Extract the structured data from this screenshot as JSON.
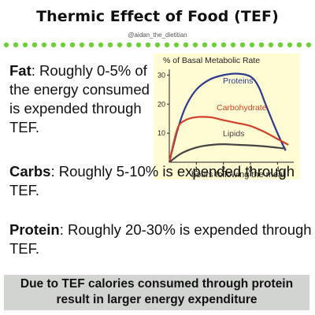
{
  "title": "Thermic Effect of Food (TEF)",
  "handle": "@aidan_the_dietitian",
  "colors": {
    "dots": "#6fcf3b",
    "banner_bg": "#d2d4d2",
    "chart_bg": "#fffbd2"
  },
  "paragraphs": {
    "fat": {
      "label": "Fat",
      "text": ": Roughly 0-5% of the energy consumed is expended through TEF."
    },
    "carbs": {
      "label": "Carbs",
      "text": ": Roughly 5-10% is expended through TEF."
    },
    "protein": {
      "label": "Protein",
      "text": ": Roughly 20-30% is expended through TEF."
    }
  },
  "banner": {
    "line1": "Due to TEF calories consumed through protein",
    "line2": "result in larger energy expenditure"
  },
  "chart_data": {
    "type": "line",
    "title": "% of Basal Metabolic Rate",
    "xlabel": "hours following the meal",
    "ylabel": "",
    "xlim": [
      0,
      4.6
    ],
    "ylim": [
      0,
      32
    ],
    "x_ticks": [
      1,
      2,
      3,
      4
    ],
    "y_ticks": [
      10,
      20,
      30
    ],
    "grid": false,
    "series": [
      {
        "name": "Proteins",
        "color": "#2a3a8c",
        "x": [
          0,
          0.3,
          0.6,
          1.0,
          1.5,
          2.0,
          2.5,
          3.0,
          3.3,
          3.6,
          4.0,
          4.3
        ],
        "y": [
          0,
          11,
          19,
          25,
          28.5,
          30,
          30.5,
          29.5,
          26,
          19,
          10,
          4
        ]
      },
      {
        "name": "Carbohydrate",
        "color": "#d2402a",
        "x": [
          0,
          0.3,
          0.6,
          1.0,
          1.5,
          2.0,
          2.5,
          3.0,
          3.5,
          4.0,
          4.4
        ],
        "y": [
          0,
          11.5,
          14.5,
          15.5,
          15.5,
          14.5,
          13.5,
          12.5,
          10.5,
          8,
          6
        ]
      },
      {
        "name": "Lipids",
        "color": "#444444",
        "x": [
          0,
          0.4,
          0.8,
          1.2,
          1.6,
          2.0,
          2.5,
          3.0,
          3.5,
          4.0,
          4.3
        ],
        "y": [
          0,
          2.8,
          4.5,
          5.5,
          6,
          6.2,
          6,
          5.8,
          5.5,
          5,
          4.7
        ]
      }
    ]
  }
}
